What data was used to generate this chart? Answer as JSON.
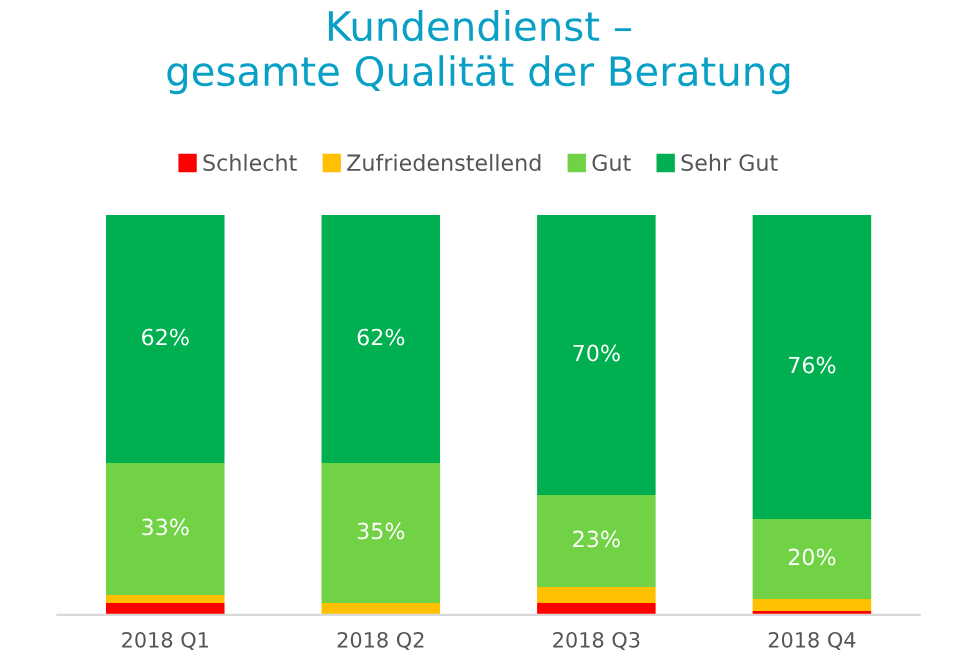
{
  "chart_data": {
    "type": "bar",
    "stacked": true,
    "title": "Kundendienst –\ngesamte Qualität der Beratung",
    "categories": [
      "2018 Q1",
      "2018 Q2",
      "2018 Q3",
      "2018 Q4"
    ],
    "series": [
      {
        "name": "Schlecht",
        "color": "#ff0000",
        "values": [
          3,
          0,
          3,
          1
        ],
        "value_labels": [
          null,
          null,
          null,
          null
        ]
      },
      {
        "name": "Zufriedenstellend",
        "color": "#ffc000",
        "values": [
          2,
          3,
          4,
          3
        ],
        "value_labels": [
          null,
          null,
          null,
          null
        ]
      },
      {
        "name": "Gut",
        "color": "#70d244",
        "values": [
          33,
          35,
          23,
          20
        ],
        "value_labels": [
          "33%",
          "35%",
          "23%",
          "20%"
        ]
      },
      {
        "name": "Sehr Gut",
        "color": "#00b050",
        "values": [
          62,
          62,
          70,
          76
        ],
        "value_labels": [
          "62%",
          "62%",
          "70%",
          "76%"
        ]
      }
    ],
    "ylim": [
      0,
      100
    ],
    "tick_labels": "x",
    "legend": "top",
    "grid": false
  }
}
